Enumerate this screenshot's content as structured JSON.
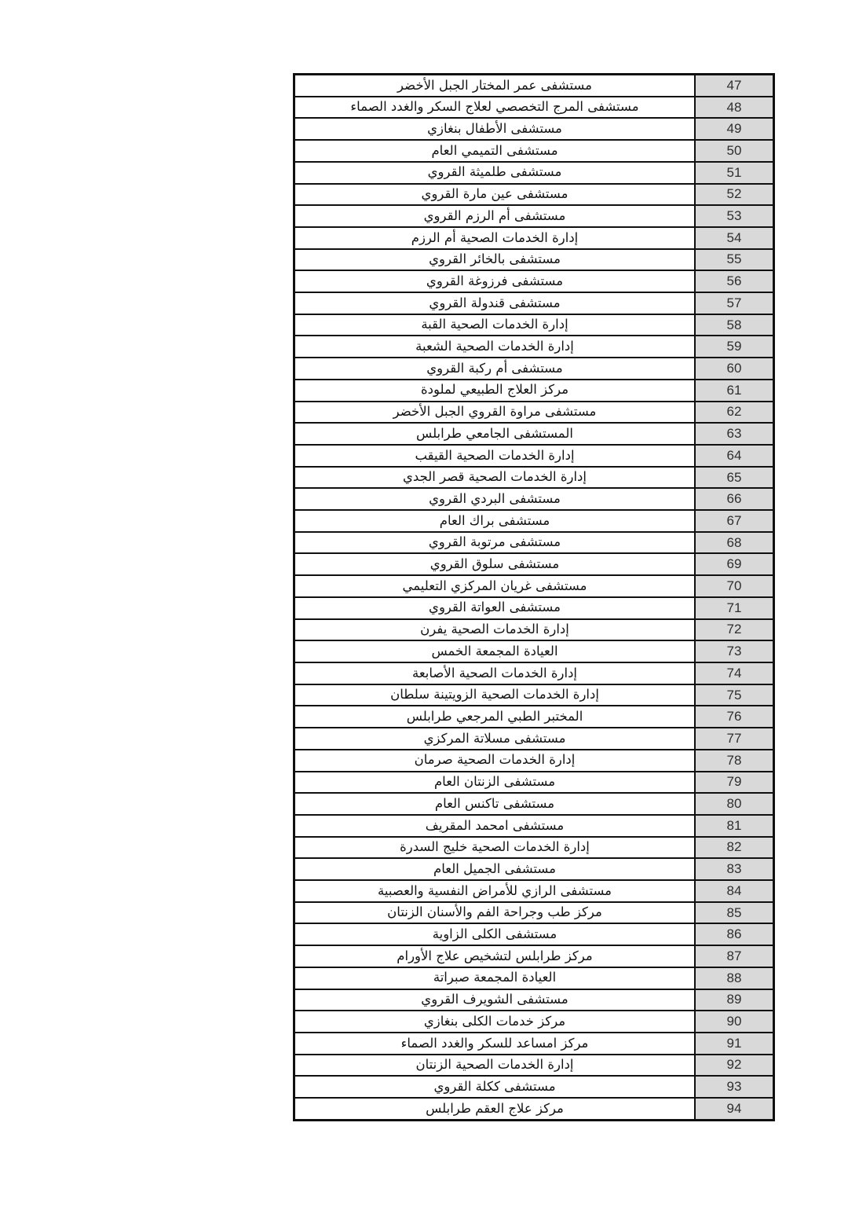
{
  "page": {
    "background_color": "#ffffff",
    "description_colors": {
      "table_border": "#101010",
      "number_column_background": "#d9d9d9",
      "name_text": "#141414",
      "number_text": "#2e2e2e"
    }
  },
  "table": {
    "columns": [
      "facility_name",
      "serial_number"
    ],
    "rows": [
      {
        "num": "47",
        "name": "مستشفى عمر المختار الجبل الأخضر"
      },
      {
        "num": "48",
        "name": "مستشفى المرج التخصصي لعلاج السكر والغدد الصماء"
      },
      {
        "num": "49",
        "name": "مستشفى الأطفال بنغازي"
      },
      {
        "num": "50",
        "name": "مستشفى التميمي العام"
      },
      {
        "num": "51",
        "name": "مستشفى طلميثة القروي"
      },
      {
        "num": "52",
        "name": "مستشفى عين مارة القروي"
      },
      {
        "num": "53",
        "name": "مستشفى أم الرزم القروي"
      },
      {
        "num": "54",
        "name": "إدارة الخدمات الصحية أم الرزم"
      },
      {
        "num": "55",
        "name": "مستشفى بالخائر القروي"
      },
      {
        "num": "56",
        "name": "مستشفى فرزوغة القروي"
      },
      {
        "num": "57",
        "name": "مستشفى قندولة القروي"
      },
      {
        "num": "58",
        "name": "إدارة الخدمات الصحية القبة"
      },
      {
        "num": "59",
        "name": "إدارة الخدمات الصحية الشعبة"
      },
      {
        "num": "60",
        "name": "مستشفى أم ركبة القروي"
      },
      {
        "num": "61",
        "name": "مركز العلاج الطبيعي لملودة"
      },
      {
        "num": "62",
        "name": "مستشفى مراوة القروي الجبل الأخضر"
      },
      {
        "num": "63",
        "name": "المستشفى الجامعي طرابلس"
      },
      {
        "num": "64",
        "name": "إدارة الخدمات الصحية القيقب"
      },
      {
        "num": "65",
        "name": "إدارة الخدمات الصحية قصر الجدي"
      },
      {
        "num": "66",
        "name": "مستشفى البردي القروي"
      },
      {
        "num": "67",
        "name": "مستشفى براك العام"
      },
      {
        "num": "68",
        "name": "مستشفى مرتوبة القروي"
      },
      {
        "num": "69",
        "name": "مستشفى سلوق القروي"
      },
      {
        "num": "70",
        "name": "مستشفى غريان المركزي التعليمي"
      },
      {
        "num": "71",
        "name": "مستشفى العواتة القروي"
      },
      {
        "num": "72",
        "name": "إدارة الخدمات الصحية يفرن"
      },
      {
        "num": "73",
        "name": "العيادة المجمعة الخمس"
      },
      {
        "num": "74",
        "name": "إدارة الخدمات الصحية الأصابعة"
      },
      {
        "num": "75",
        "name": "إدارة الخدمات الصحية الزويتينة سلطان"
      },
      {
        "num": "76",
        "name": "المختبر الطبي المرجعي طرابلس"
      },
      {
        "num": "77",
        "name": "مستشفى مسلاتة المركزي"
      },
      {
        "num": "78",
        "name": "إدارة الخدمات الصحية صرمان"
      },
      {
        "num": "79",
        "name": "مستشفى الزنتان العام"
      },
      {
        "num": "80",
        "name": "مستشفى تاكنس العام"
      },
      {
        "num": "81",
        "name": "مستشفى امحمد المقريف"
      },
      {
        "num": "82",
        "name": "إدارة الخدمات الصحية خليج السدرة"
      },
      {
        "num": "83",
        "name": "مستشفى الجميل العام"
      },
      {
        "num": "84",
        "name": "مستشفى الرازي للأمراض النفسية والعصبية"
      },
      {
        "num": "85",
        "name": "مركز طب وجراحة الفم والأسنان الزنتان"
      },
      {
        "num": "86",
        "name": "مستشفى الكلى الزاوية"
      },
      {
        "num": "87",
        "name": "مركز طرابلس لتشخيص علاج الأورام"
      },
      {
        "num": "88",
        "name": "العيادة المجمعة صبراتة"
      },
      {
        "num": "89",
        "name": "مستشفى الشويرف القروي"
      },
      {
        "num": "90",
        "name": "مركز خدمات الكلى بنغازي"
      },
      {
        "num": "91",
        "name": "مركز امساعد للسكر والغدد الصماء"
      },
      {
        "num": "92",
        "name": "إدارة الخدمات الصحية الزنتان"
      },
      {
        "num": "93",
        "name": "مستشفى ككلة القروي"
      },
      {
        "num": "94",
        "name": "مركز علاج العقم طرابلس"
      }
    ]
  }
}
